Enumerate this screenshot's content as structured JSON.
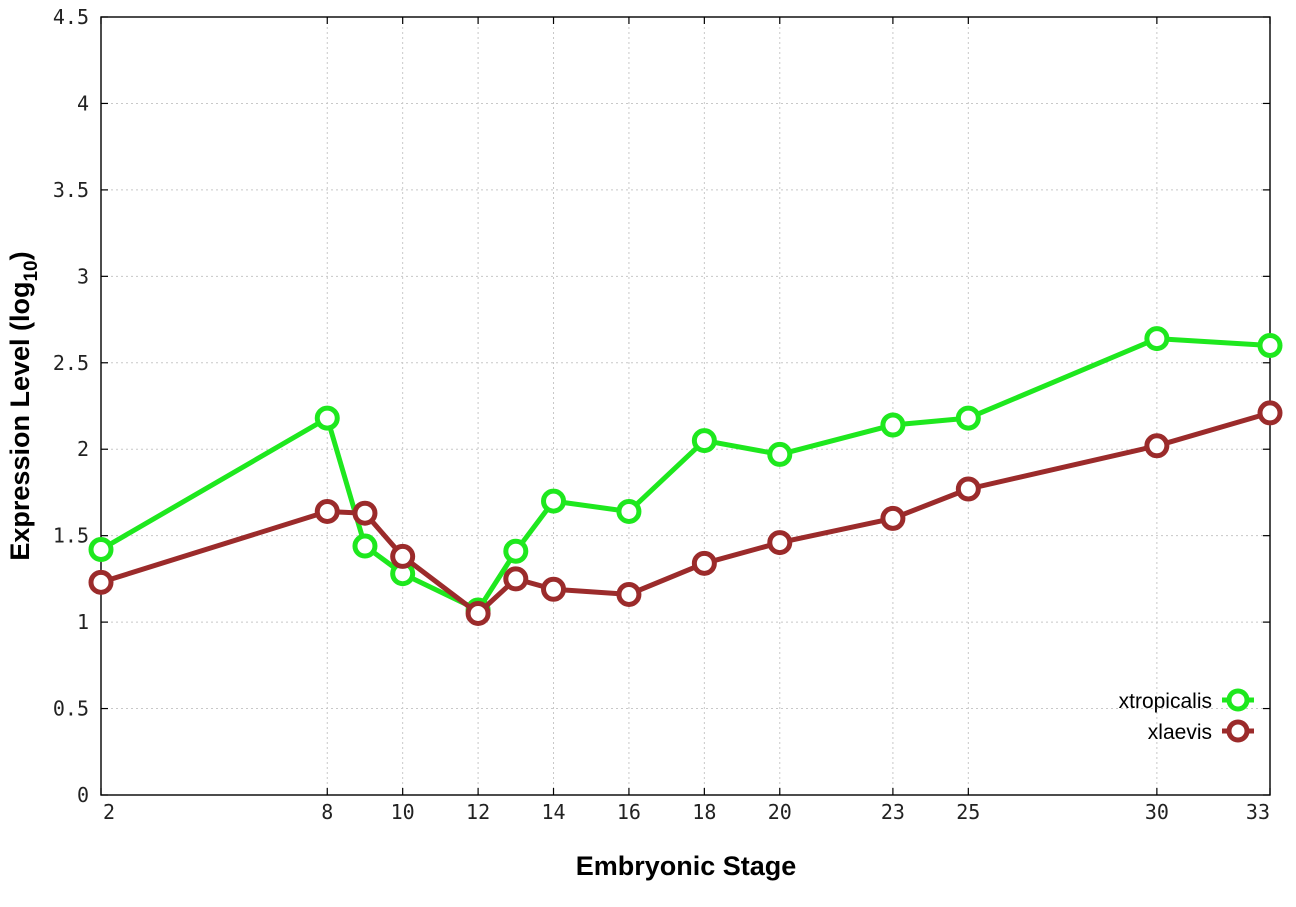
{
  "chart_data": {
    "type": "line",
    "xlabel": "Embryonic Stage",
    "ylabel": "Expression Level (log",
    "ylabel_subscript": "10",
    "ylabel_close": ")",
    "xlim": [
      2,
      33
    ],
    "ylim": [
      0,
      4.5
    ],
    "x_ticks": [
      2,
      8,
      10,
      12,
      14,
      16,
      18,
      20,
      23,
      25,
      30,
      33
    ],
    "y_ticks": [
      0,
      0.5,
      1,
      1.5,
      2,
      2.5,
      3,
      3.5,
      4,
      4.5
    ],
    "y_tick_labels": [
      "0",
      "0.5",
      "1",
      "1.5",
      "2",
      "2.5",
      "3",
      "3.5",
      "4",
      "4.5"
    ],
    "grid": true,
    "legend_position": "bottom-right",
    "series": [
      {
        "name": "xtropicalis",
        "color": "#1ee81e",
        "x": [
          2,
          8,
          9,
          10,
          12,
          13,
          14,
          16,
          18,
          20,
          23,
          25,
          30,
          33
        ],
        "y": [
          1.42,
          2.18,
          1.44,
          1.28,
          1.07,
          1.41,
          1.7,
          1.64,
          2.05,
          1.97,
          2.14,
          2.18,
          2.64,
          2.6
        ]
      },
      {
        "name": "xlaevis",
        "color": "#9b2b2b",
        "x": [
          2,
          8,
          9,
          10,
          12,
          13,
          14,
          16,
          18,
          20,
          23,
          25,
          30,
          33
        ],
        "y": [
          1.23,
          1.64,
          1.63,
          1.38,
          1.05,
          1.25,
          1.19,
          1.16,
          1.34,
          1.46,
          1.6,
          1.77,
          2.02,
          2.21
        ]
      }
    ]
  }
}
